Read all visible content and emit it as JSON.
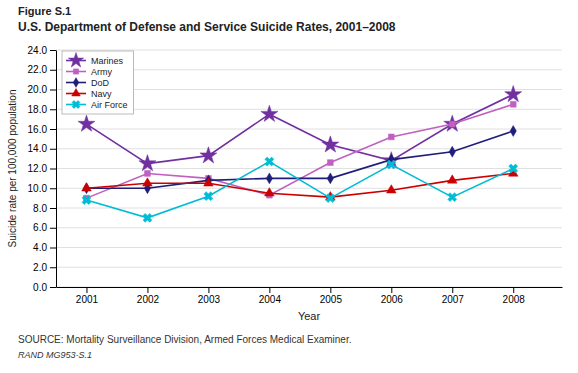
{
  "chart_data": {
    "type": "line",
    "title": "U.S. Department of Defense and Service Suicide Rates, 2001–2008",
    "xlabel": "Year",
    "ylabel": "Suicide rate per 100,000 population",
    "annotations": [
      "Figure S.1",
      "SOURCE: Mortality Surveillance Division, Armed Forces Medical Examiner.",
      "RAND MG953-S.1"
    ],
    "x": [
      2001,
      2002,
      2003,
      2004,
      2005,
      2006,
      2007,
      2008
    ],
    "series": [
      {
        "name": "Marines",
        "color": "#7030a0",
        "marker": "star",
        "line_style": "solid",
        "values": [
          16.5,
          12.5,
          13.3,
          17.5,
          14.4,
          12.8,
          16.5,
          19.5
        ]
      },
      {
        "name": "Army",
        "color": "#c060c0",
        "marker": "square",
        "line_style": "solid",
        "values": [
          9.0,
          11.5,
          11.0,
          9.3,
          12.6,
          15.2,
          16.5,
          18.5
        ]
      },
      {
        "name": "DoD",
        "color": "#1f1f7a",
        "marker": "diamond",
        "line_style": "solid",
        "values": [
          10.0,
          10.0,
          10.8,
          11.0,
          11.0,
          12.9,
          13.7,
          15.8
        ]
      },
      {
        "name": "Navy",
        "color": "#cc0000",
        "marker": "triangle",
        "line_style": "solid",
        "values": [
          10.0,
          10.5,
          10.5,
          9.5,
          9.1,
          9.8,
          10.8,
          11.5
        ]
      },
      {
        "name": "Air Force",
        "color": "#00bcd4",
        "marker": "x",
        "line_style": "solid",
        "values": [
          8.8,
          7.0,
          9.2,
          12.7,
          9.0,
          12.4,
          9.1,
          12.0
        ]
      }
    ],
    "xlim": [
      2000.5,
      2008.8
    ],
    "xticks": [
      2001,
      2002,
      2003,
      2004,
      2005,
      2006,
      2007,
      2008
    ],
    "ylim": [
      0,
      24.0
    ],
    "yticks": [
      {
        "value": 0,
        "label": "0.0"
      },
      {
        "value": 2.0,
        "label": "2.0"
      },
      {
        "value": 4.0,
        "label": "4.0"
      },
      {
        "value": 6.0,
        "label": "6.0"
      },
      {
        "value": 8.0,
        "label": "8.0"
      },
      {
        "value": 10.0,
        "label": "10.0"
      },
      {
        "value": 12.0,
        "label": "12.0"
      },
      {
        "value": 14.0,
        "label": "14.0"
      },
      {
        "value": 16.0,
        "label": "16.0"
      },
      {
        "value": 18.0,
        "label": "18.0"
      },
      {
        "value": 20.0,
        "label": "20.0"
      },
      {
        "value": 22.0,
        "label": "22.0"
      },
      {
        "value": 24.0,
        "label": "24.0"
      }
    ],
    "grid": true,
    "legend": "upper left"
  }
}
